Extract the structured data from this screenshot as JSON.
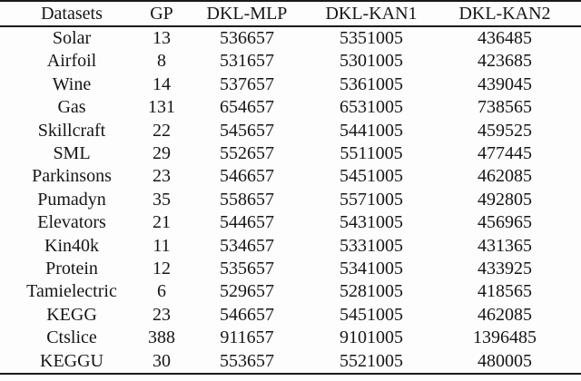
{
  "page": {
    "background": "#fdfdfd",
    "text_color": "#161616",
    "rule_color": "#1a1a1a"
  },
  "table": {
    "columns": [
      "Datasets",
      "GP",
      "DKL-MLP",
      "DKL-KAN1",
      "DKL-KAN2"
    ],
    "rows": [
      [
        "Solar",
        "13",
        "536657",
        "5351005",
        "436485"
      ],
      [
        "Airfoil",
        "8",
        "531657",
        "5301005",
        "423685"
      ],
      [
        "Wine",
        "14",
        "537657",
        "5361005",
        "439045"
      ],
      [
        "Gas",
        "131",
        "654657",
        "6531005",
        "738565"
      ],
      [
        "Skillcraft",
        "22",
        "545657",
        "5441005",
        "459525"
      ],
      [
        "SML",
        "29",
        "552657",
        "5511005",
        "477445"
      ],
      [
        "Parkinsons",
        "23",
        "546657",
        "5451005",
        "462085"
      ],
      [
        "Pumadyn",
        "35",
        "558657",
        "5571005",
        "492805"
      ],
      [
        "Elevators",
        "21",
        "544657",
        "5431005",
        "456965"
      ],
      [
        "Kin40k",
        "11",
        "534657",
        "5331005",
        "431365"
      ],
      [
        "Protein",
        "12",
        "535657",
        "5341005",
        "433925"
      ],
      [
        "Tamielectric",
        "6",
        "529657",
        "5281005",
        "418565"
      ],
      [
        "KEGG",
        "23",
        "546657",
        "5451005",
        "462085"
      ],
      [
        "Ctslice",
        "388",
        "911657",
        "9101005",
        "1396485"
      ],
      [
        "KEGGU",
        "30",
        "553657",
        "5521005",
        "480005"
      ]
    ]
  },
  "chart_data": {
    "type": "table",
    "columns": [
      "Datasets",
      "GP",
      "DKL-MLP",
      "DKL-KAN1",
      "DKL-KAN2"
    ],
    "rows": [
      [
        "Solar",
        13,
        536657,
        5351005,
        436485
      ],
      [
        "Airfoil",
        8,
        531657,
        5301005,
        423685
      ],
      [
        "Wine",
        14,
        537657,
        5361005,
        439045
      ],
      [
        "Gas",
        131,
        654657,
        6531005,
        738565
      ],
      [
        "Skillcraft",
        22,
        545657,
        5441005,
        459525
      ],
      [
        "SML",
        29,
        552657,
        5511005,
        477445
      ],
      [
        "Parkinsons",
        23,
        546657,
        5451005,
        462085
      ],
      [
        "Pumadyn",
        35,
        558657,
        5571005,
        492805
      ],
      [
        "Elevators",
        21,
        544657,
        5431005,
        456965
      ],
      [
        "Kin40k",
        11,
        534657,
        5331005,
        431365
      ],
      [
        "Protein",
        12,
        535657,
        5341005,
        433925
      ],
      [
        "Tamielectric",
        6,
        529657,
        5281005,
        418565
      ],
      [
        "KEGG",
        23,
        546657,
        5451005,
        462085
      ],
      [
        "Ctslice",
        388,
        911657,
        9101005,
        1396485
      ],
      [
        "KEGGU",
        30,
        553657,
        5521005,
        480005
      ]
    ]
  }
}
